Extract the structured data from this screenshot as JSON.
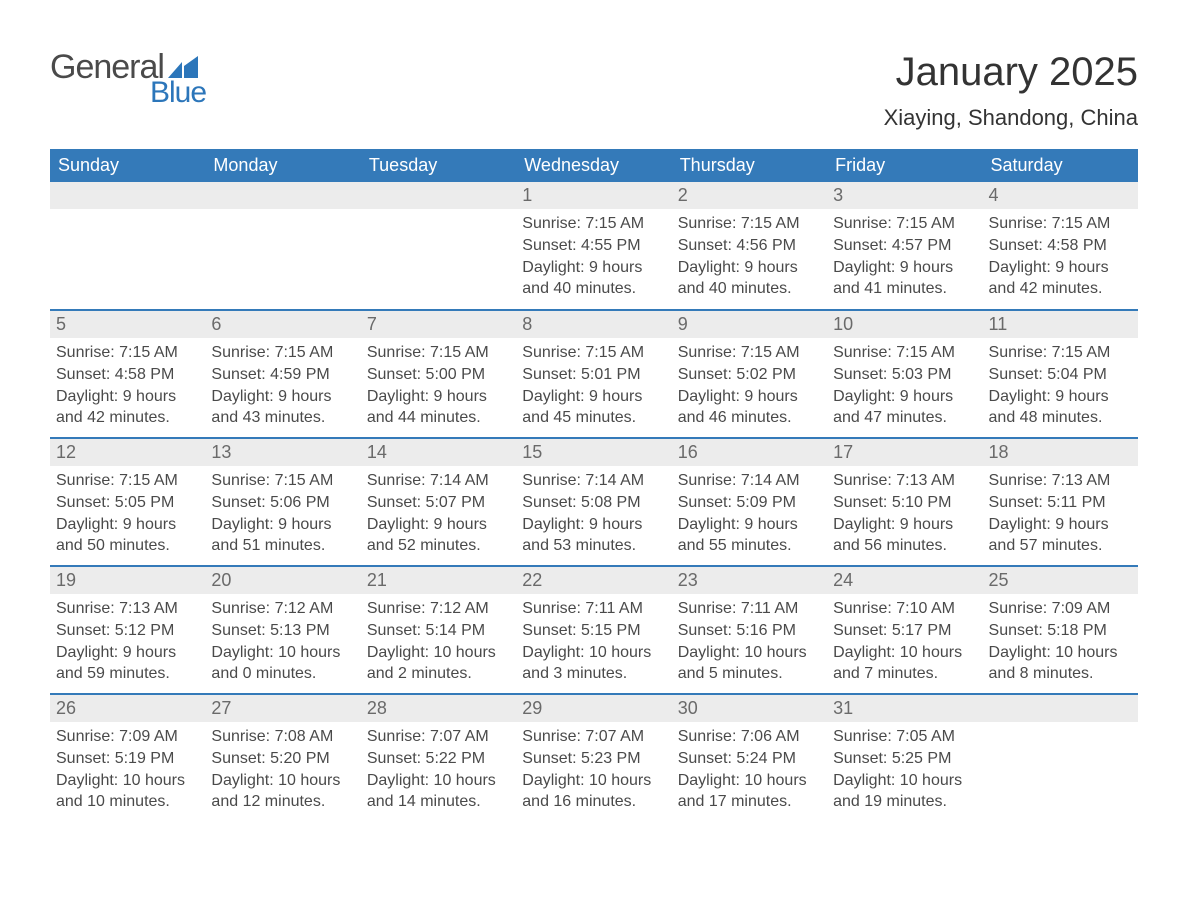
{
  "logo": {
    "text1": "General",
    "text2": "Blue",
    "flag_color": "#2c76ba"
  },
  "title": "January 2025",
  "location": "Xiaying, Shandong, China",
  "colors": {
    "header_bg": "#347ab9",
    "header_text": "#ffffff",
    "daynum_bg": "#ececec",
    "daynum_text": "#6a6a6a",
    "body_text": "#4a4a4a",
    "row_divider": "#347ab9",
    "page_bg": "#ffffff"
  },
  "typography": {
    "title_fontsize": 40,
    "location_fontsize": 22,
    "header_fontsize": 18,
    "daynum_fontsize": 18,
    "cell_fontsize": 16
  },
  "weekdays": [
    "Sunday",
    "Monday",
    "Tuesday",
    "Wednesday",
    "Thursday",
    "Friday",
    "Saturday"
  ],
  "weeks": [
    [
      null,
      null,
      null,
      {
        "n": "1",
        "sunrise": "7:15 AM",
        "sunset": "4:55 PM",
        "dl1": "Daylight: 9 hours",
        "dl2": "and 40 minutes."
      },
      {
        "n": "2",
        "sunrise": "7:15 AM",
        "sunset": "4:56 PM",
        "dl1": "Daylight: 9 hours",
        "dl2": "and 40 minutes."
      },
      {
        "n": "3",
        "sunrise": "7:15 AM",
        "sunset": "4:57 PM",
        "dl1": "Daylight: 9 hours",
        "dl2": "and 41 minutes."
      },
      {
        "n": "4",
        "sunrise": "7:15 AM",
        "sunset": "4:58 PM",
        "dl1": "Daylight: 9 hours",
        "dl2": "and 42 minutes."
      }
    ],
    [
      {
        "n": "5",
        "sunrise": "7:15 AM",
        "sunset": "4:58 PM",
        "dl1": "Daylight: 9 hours",
        "dl2": "and 42 minutes."
      },
      {
        "n": "6",
        "sunrise": "7:15 AM",
        "sunset": "4:59 PM",
        "dl1": "Daylight: 9 hours",
        "dl2": "and 43 minutes."
      },
      {
        "n": "7",
        "sunrise": "7:15 AM",
        "sunset": "5:00 PM",
        "dl1": "Daylight: 9 hours",
        "dl2": "and 44 minutes."
      },
      {
        "n": "8",
        "sunrise": "7:15 AM",
        "sunset": "5:01 PM",
        "dl1": "Daylight: 9 hours",
        "dl2": "and 45 minutes."
      },
      {
        "n": "9",
        "sunrise": "7:15 AM",
        "sunset": "5:02 PM",
        "dl1": "Daylight: 9 hours",
        "dl2": "and 46 minutes."
      },
      {
        "n": "10",
        "sunrise": "7:15 AM",
        "sunset": "5:03 PM",
        "dl1": "Daylight: 9 hours",
        "dl2": "and 47 minutes."
      },
      {
        "n": "11",
        "sunrise": "7:15 AM",
        "sunset": "5:04 PM",
        "dl1": "Daylight: 9 hours",
        "dl2": "and 48 minutes."
      }
    ],
    [
      {
        "n": "12",
        "sunrise": "7:15 AM",
        "sunset": "5:05 PM",
        "dl1": "Daylight: 9 hours",
        "dl2": "and 50 minutes."
      },
      {
        "n": "13",
        "sunrise": "7:15 AM",
        "sunset": "5:06 PM",
        "dl1": "Daylight: 9 hours",
        "dl2": "and 51 minutes."
      },
      {
        "n": "14",
        "sunrise": "7:14 AM",
        "sunset": "5:07 PM",
        "dl1": "Daylight: 9 hours",
        "dl2": "and 52 minutes."
      },
      {
        "n": "15",
        "sunrise": "7:14 AM",
        "sunset": "5:08 PM",
        "dl1": "Daylight: 9 hours",
        "dl2": "and 53 minutes."
      },
      {
        "n": "16",
        "sunrise": "7:14 AM",
        "sunset": "5:09 PM",
        "dl1": "Daylight: 9 hours",
        "dl2": "and 55 minutes."
      },
      {
        "n": "17",
        "sunrise": "7:13 AM",
        "sunset": "5:10 PM",
        "dl1": "Daylight: 9 hours",
        "dl2": "and 56 minutes."
      },
      {
        "n": "18",
        "sunrise": "7:13 AM",
        "sunset": "5:11 PM",
        "dl1": "Daylight: 9 hours",
        "dl2": "and 57 minutes."
      }
    ],
    [
      {
        "n": "19",
        "sunrise": "7:13 AM",
        "sunset": "5:12 PM",
        "dl1": "Daylight: 9 hours",
        "dl2": "and 59 minutes."
      },
      {
        "n": "20",
        "sunrise": "7:12 AM",
        "sunset": "5:13 PM",
        "dl1": "Daylight: 10 hours",
        "dl2": "and 0 minutes."
      },
      {
        "n": "21",
        "sunrise": "7:12 AM",
        "sunset": "5:14 PM",
        "dl1": "Daylight: 10 hours",
        "dl2": "and 2 minutes."
      },
      {
        "n": "22",
        "sunrise": "7:11 AM",
        "sunset": "5:15 PM",
        "dl1": "Daylight: 10 hours",
        "dl2": "and 3 minutes."
      },
      {
        "n": "23",
        "sunrise": "7:11 AM",
        "sunset": "5:16 PM",
        "dl1": "Daylight: 10 hours",
        "dl2": "and 5 minutes."
      },
      {
        "n": "24",
        "sunrise": "7:10 AM",
        "sunset": "5:17 PM",
        "dl1": "Daylight: 10 hours",
        "dl2": "and 7 minutes."
      },
      {
        "n": "25",
        "sunrise": "7:09 AM",
        "sunset": "5:18 PM",
        "dl1": "Daylight: 10 hours",
        "dl2": "and 8 minutes."
      }
    ],
    [
      {
        "n": "26",
        "sunrise": "7:09 AM",
        "sunset": "5:19 PM",
        "dl1": "Daylight: 10 hours",
        "dl2": "and 10 minutes."
      },
      {
        "n": "27",
        "sunrise": "7:08 AM",
        "sunset": "5:20 PM",
        "dl1": "Daylight: 10 hours",
        "dl2": "and 12 minutes."
      },
      {
        "n": "28",
        "sunrise": "7:07 AM",
        "sunset": "5:22 PM",
        "dl1": "Daylight: 10 hours",
        "dl2": "and 14 minutes."
      },
      {
        "n": "29",
        "sunrise": "7:07 AM",
        "sunset": "5:23 PM",
        "dl1": "Daylight: 10 hours",
        "dl2": "and 16 minutes."
      },
      {
        "n": "30",
        "sunrise": "7:06 AM",
        "sunset": "5:24 PM",
        "dl1": "Daylight: 10 hours",
        "dl2": "and 17 minutes."
      },
      {
        "n": "31",
        "sunrise": "7:05 AM",
        "sunset": "5:25 PM",
        "dl1": "Daylight: 10 hours",
        "dl2": "and 19 minutes."
      },
      null
    ]
  ],
  "labels": {
    "sunrise": "Sunrise: ",
    "sunset": "Sunset: "
  }
}
